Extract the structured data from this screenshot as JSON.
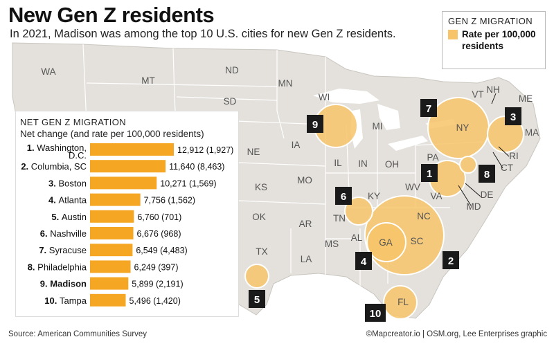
{
  "header": {
    "title": "New Gen Z residents",
    "subtitle": "In 2021, Madison was among the top 10 U.S. cities for new Gen Z residents."
  },
  "legend": {
    "title": "GEN Z MIGRATION",
    "label": "Rate per 100,000 residents",
    "color": "#f7c46a"
  },
  "panel": {
    "title": "NET GEN Z MIGRATION",
    "subtitle": "Net change (and rate per 100,000 residents)"
  },
  "chart_data": {
    "type": "bar",
    "orientation": "horizontal",
    "title": "NET GEN Z MIGRATION",
    "subtitle": "Net change (and rate per 100,000 residents)",
    "bar_color": "#f5a623",
    "categories": [
      "1. Washington, D.C.",
      "2. Columbia, SC",
      "3. Boston",
      "4. Atlanta",
      "5. Austin",
      "6. Nashville",
      "7. Syracuse",
      "8. Philadelphia",
      "9. Madison",
      "10. Tampa"
    ],
    "rank_labels": [
      "1.",
      "2.",
      "3.",
      "4.",
      "5.",
      "6.",
      "7.",
      "8.",
      "9.",
      "10."
    ],
    "city_labels": [
      "Washington, D.C.",
      "Columbia, SC",
      "Boston",
      "Atlanta",
      "Austin",
      "Nashville",
      "Syracuse",
      "Philadelphia",
      "Madison",
      "Tampa"
    ],
    "values": [
      12912,
      11640,
      10271,
      7756,
      6760,
      6676,
      6549,
      6249,
      5899,
      5496
    ],
    "rates": [
      1927,
      8463,
      1569,
      1562,
      701,
      968,
      4483,
      397,
      2191,
      1420
    ],
    "value_labels": [
      "12,912 (1,927)",
      "11,640 (8,463)",
      "10,271 (1,569)",
      "7,756 (1,562)",
      "6,760 (701)",
      "6,676 (968)",
      "6,549 (4,483)",
      "6,249 (397)",
      "5,899 (2,191)",
      "5,496 (1,420)"
    ],
    "highlight": "Madison",
    "xlim": [
      0,
      12912
    ]
  },
  "map": {
    "bubble_color": "#f7c46a",
    "state_labels": [
      "WA",
      "MT",
      "ND",
      "MN",
      "SD",
      "WI",
      "MI",
      "NE",
      "IA",
      "IL",
      "IN",
      "OH",
      "KS",
      "MO",
      "KY",
      "WV",
      "OK",
      "AR",
      "TN",
      "VA",
      "TX",
      "LA",
      "MS",
      "AL",
      "GA",
      "SC",
      "NC",
      "FL",
      "PA",
      "NY",
      "VT",
      "NH",
      "ME",
      "MA",
      "RI",
      "CT",
      "DE",
      "MD"
    ],
    "ranks": [
      "1",
      "2",
      "3",
      "4",
      "5",
      "6",
      "7",
      "8",
      "9",
      "10"
    ]
  },
  "footer": {
    "source": "Source: American Communities Survey",
    "credit": "©Mapcreator.io | OSM.org, Lee Enterprises graphic"
  }
}
